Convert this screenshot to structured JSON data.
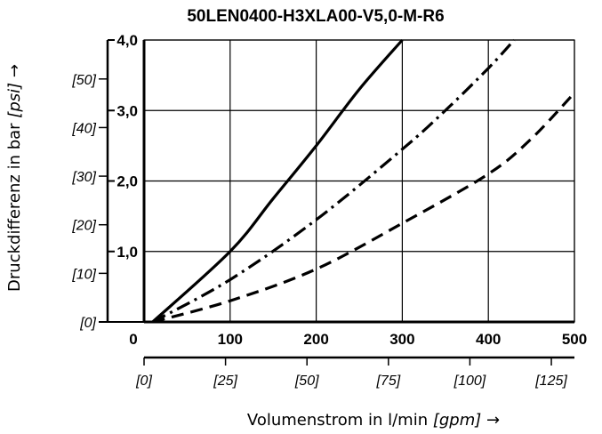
{
  "chart_data": {
    "type": "line",
    "title": "50LEN0400-H3XLA00-V5,0-M-R6",
    "xlabel": {
      "main": "Volumenstrom in l/min ",
      "unit_alt": "[gpm]",
      "arrow": " →"
    },
    "ylabel": {
      "main": "Druckdifferenz in bar ",
      "unit_alt": "[psi]",
      "arrow": " →"
    },
    "xlim": [
      0,
      500
    ],
    "ylim": [
      0,
      4
    ],
    "grid": true,
    "x_ticks": [
      "0",
      "100",
      "200",
      "300",
      "400",
      "500"
    ],
    "y_ticks": [
      "1,0",
      "2,0",
      "3,0",
      "4,0"
    ],
    "x_ticks_secondary": [
      "[0]",
      "[25]",
      "[50]",
      "[75]",
      "[100]",
      "[125]"
    ],
    "y_ticks_secondary": [
      "[0]",
      "[10]",
      "[20]",
      "[30]",
      "[40]",
      "[50]"
    ],
    "series": [
      {
        "style": "solid",
        "x": [
          10,
          100,
          150,
          200,
          250,
          300
        ],
        "y": [
          0,
          1.0,
          1.75,
          2.5,
          3.3,
          4.0
        ]
      },
      {
        "style": "dash-dot",
        "x": [
          10,
          100,
          200,
          300,
          350,
          400,
          430
        ],
        "y": [
          0,
          0.6,
          1.45,
          2.45,
          3.0,
          3.6,
          4.0
        ]
      },
      {
        "style": "dashed",
        "x": [
          10,
          100,
          200,
          300,
          400,
          450,
          500
        ],
        "y": [
          0,
          0.3,
          0.75,
          1.4,
          2.1,
          2.6,
          3.25
        ]
      }
    ]
  }
}
